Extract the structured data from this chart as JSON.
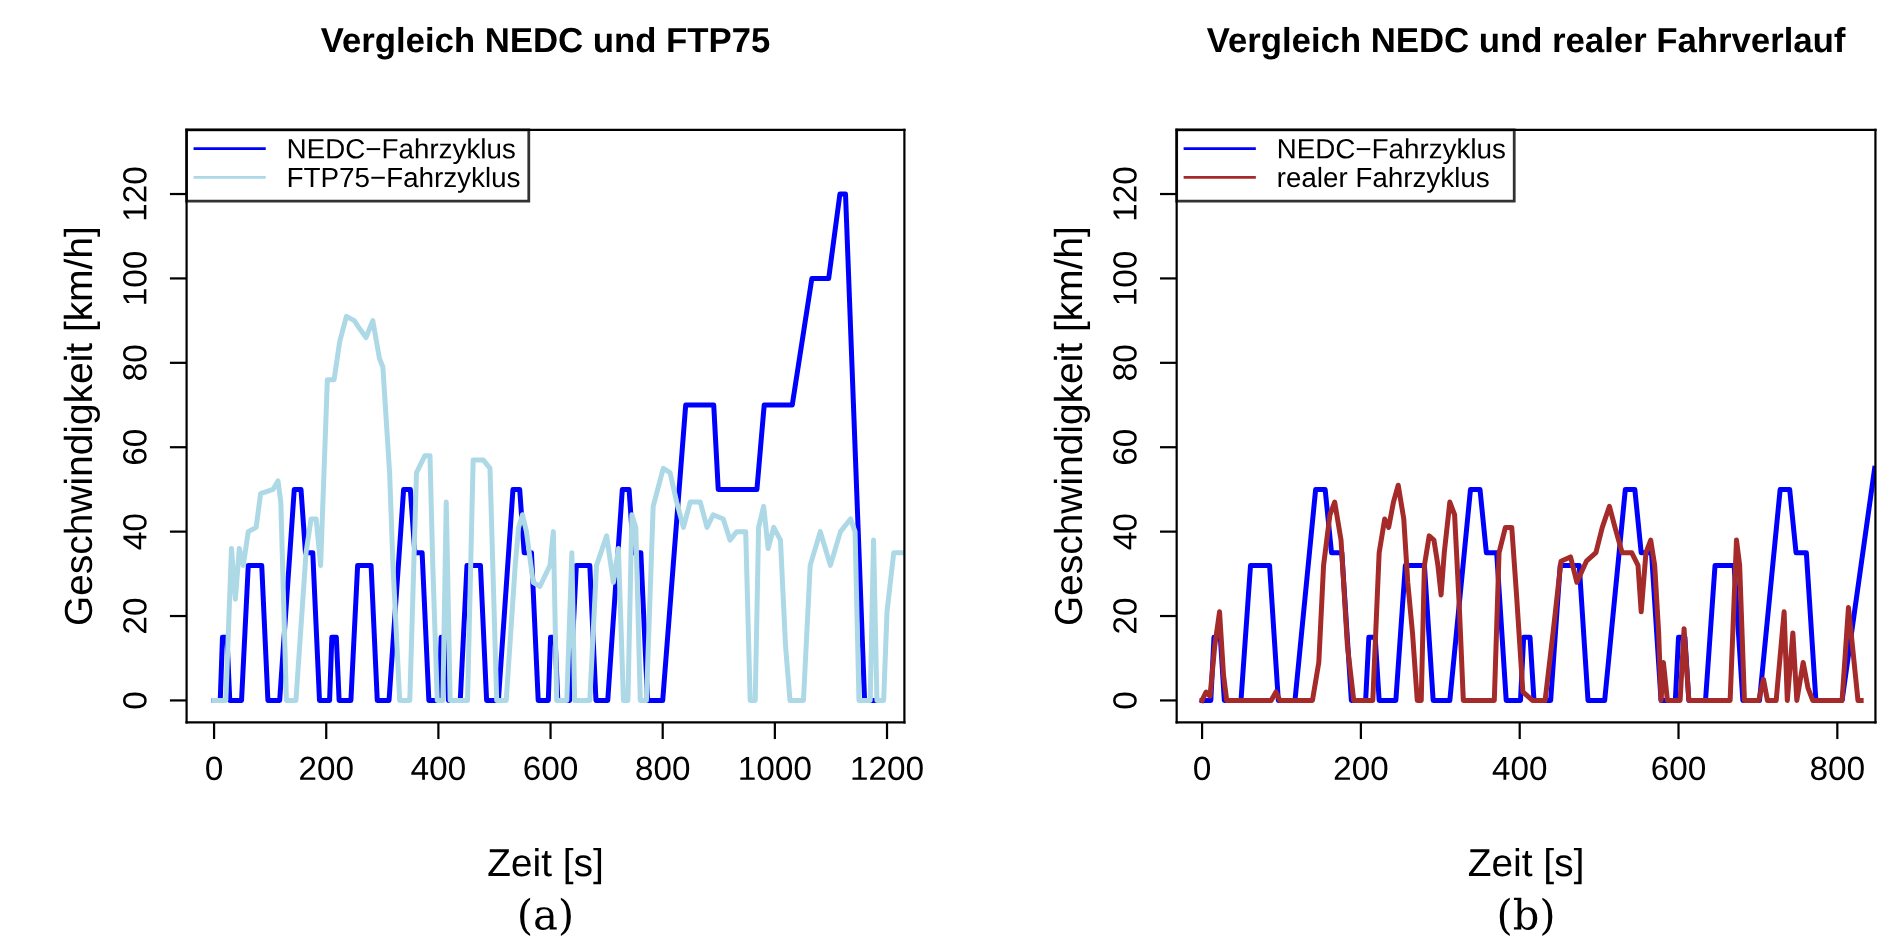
{
  "chart_data": [
    {
      "type": "line",
      "title": "Vergleich NEDC und FTP75",
      "xlabel": "Zeit [s]",
      "ylabel": "Geschwindigkeit [km/h]",
      "annotations": [
        "(a)"
      ],
      "legend": "top left",
      "xlim": [
        -49,
        1231
      ],
      "ylim": [
        -5.2,
        135.2
      ],
      "xticks": [
        0,
        200,
        400,
        600,
        800,
        1000,
        1200
      ],
      "yticks": [
        0,
        20,
        40,
        60,
        80,
        100,
        120
      ],
      "series": [
        {
          "name": "NEDC−Fahrzyklus",
          "color": "#0000ff",
          "x": [
            0,
            11,
            15,
            23,
            28,
            49,
            61,
            85,
            96,
            117,
            143,
            155,
            163,
            176,
            188,
            195,
            206,
            210,
            218,
            223,
            244,
            256,
            280,
            291,
            312,
            338,
            350,
            358,
            371,
            383,
            390,
            401,
            405,
            413,
            418,
            439,
            451,
            475,
            486,
            507,
            533,
            545,
            553,
            566,
            578,
            585,
            596,
            600,
            608,
            613,
            634,
            646,
            670,
            681,
            702,
            728,
            740,
            748,
            761,
            773,
            780,
            800,
            841,
            891,
            899,
            968,
            981,
            1031,
            1066,
            1096,
            1116,
            1126,
            1160,
            1180
          ],
          "values": [
            0,
            0,
            15,
            15,
            0,
            0,
            32,
            32,
            0,
            0,
            50,
            50,
            35,
            35,
            0,
            0,
            0,
            15,
            15,
            0,
            0,
            32,
            32,
            0,
            0,
            50,
            50,
            35,
            35,
            0,
            0,
            0,
            15,
            15,
            0,
            0,
            32,
            32,
            0,
            0,
            50,
            50,
            35,
            35,
            0,
            0,
            0,
            15,
            15,
            0,
            0,
            32,
            32,
            0,
            0,
            50,
            50,
            35,
            35,
            0,
            0,
            0,
            70,
            70,
            50,
            50,
            70,
            70,
            100,
            100,
            120,
            120,
            0,
            0
          ]
        },
        {
          "name": "FTP75−Fahrzyklus",
          "color": "#add8e6",
          "x": [
            0,
            21,
            31,
            38,
            45,
            52,
            61,
            75,
            83,
            105,
            114,
            119,
            129,
            146,
            164,
            173,
            182,
            190,
            202,
            214,
            224,
            236,
            250,
            260,
            271,
            283,
            295,
            301,
            313,
            319,
            331,
            349,
            361,
            376,
            385,
            390,
            398,
            408,
            414,
            421,
            452,
            462,
            480,
            492,
            504,
            521,
            537,
            543,
            550,
            557,
            569,
            581,
            599,
            605,
            611,
            629,
            638,
            643,
            670,
            682,
            700,
            712,
            721,
            730,
            738,
            745,
            752,
            760,
            771,
            783,
            801,
            813,
            825,
            837,
            849,
            867,
            879,
            890,
            908,
            920,
            932,
            948,
            956,
            965,
            971,
            980,
            988,
            998,
            1010,
            1019,
            1027,
            1051,
            1063,
            1081,
            1099,
            1117,
            1135,
            1143,
            1150,
            1170,
            1176,
            1182,
            1194,
            1200,
            1212,
            1230
          ],
          "values": [
            0,
            0,
            36,
            24,
            36,
            32,
            40,
            41,
            49,
            50,
            52,
            47,
            0,
            0,
            35,
            43,
            43,
            32,
            76,
            76,
            85,
            91,
            90,
            88,
            86,
            90,
            81,
            79,
            54,
            32,
            0,
            0,
            54,
            58,
            58,
            32,
            0,
            0,
            47,
            0,
            0,
            57,
            57,
            55,
            0,
            0,
            32,
            41,
            44,
            40,
            28,
            27,
            32,
            40,
            0,
            0,
            35,
            0,
            0,
            32,
            39,
            28,
            36,
            0,
            0,
            44,
            41,
            0,
            0,
            46,
            55,
            54,
            47,
            41,
            47,
            47,
            41,
            44,
            43,
            38,
            40,
            40,
            0,
            0,
            41,
            46,
            36,
            41,
            38,
            13,
            0,
            0,
            32,
            40,
            32,
            40,
            43,
            40,
            0,
            0,
            38,
            0,
            0,
            21,
            35,
            35
          ]
        }
      ]
    },
    {
      "type": "line",
      "title": "Vergleich NEDC und realer Fahrverlauf",
      "xlabel": "Zeit [s]",
      "ylabel": "Geschwindigkeit [km/h]",
      "annotations": [
        "(b)"
      ],
      "legend": "top left",
      "xlim": [
        -32,
        848
      ],
      "ylim": [
        -5.2,
        135.2
      ],
      "xticks": [
        0,
        200,
        400,
        600,
        800
      ],
      "yticks": [
        0,
        20,
        40,
        60,
        80,
        100,
        120
      ],
      "series": [
        {
          "name": "NEDC−Fahrzyklus",
          "color": "#0000ff",
          "x": [
            0,
            11,
            15,
            23,
            28,
            49,
            61,
            85,
            96,
            117,
            143,
            155,
            163,
            176,
            188,
            195,
            206,
            210,
            218,
            223,
            244,
            256,
            280,
            291,
            312,
            338,
            350,
            358,
            371,
            383,
            390,
            401,
            405,
            413,
            418,
            439,
            451,
            475,
            486,
            507,
            533,
            545,
            553,
            566,
            578,
            585,
            596,
            600,
            608,
            613,
            634,
            646,
            670,
            681,
            702,
            728,
            740,
            748,
            761,
            773,
            780,
            806,
            847
          ],
          "values": [
            0,
            0,
            15,
            15,
            0,
            0,
            32,
            32,
            0,
            0,
            50,
            50,
            35,
            35,
            0,
            0,
            0,
            15,
            15,
            0,
            0,
            32,
            32,
            0,
            0,
            50,
            50,
            35,
            35,
            0,
            0,
            0,
            15,
            15,
            0,
            0,
            32,
            32,
            0,
            0,
            50,
            50,
            35,
            35,
            0,
            0,
            0,
            15,
            15,
            0,
            0,
            32,
            32,
            0,
            0,
            50,
            50,
            35,
            35,
            0,
            0,
            0,
            55
          ]
        },
        {
          "name": "realer Fahrzyklus",
          "color": "#a52a2a",
          "x": [
            0,
            5,
            10,
            16,
            22,
            27,
            31,
            87,
            93,
            98,
            139,
            147,
            153,
            161,
            167,
            175,
            183,
            191,
            215,
            223,
            230,
            235,
            241,
            247,
            254,
            259,
            265,
            271,
            276,
            280,
            286,
            292,
            297,
            301,
            305,
            312,
            318,
            324,
            329,
            368,
            374,
            382,
            390,
            396,
            404,
            416,
            432,
            442,
            452,
            464,
            472,
            484,
            496,
            504,
            513,
            520,
            529,
            541,
            549,
            553,
            559,
            565,
            570,
            575,
            578,
            581,
            586,
            602,
            607,
            613,
            665,
            673,
            677,
            683,
            701,
            707,
            712,
            723,
            733,
            737,
            744,
            749,
            757,
            763,
            769,
            806,
            814,
            819,
            826,
            830
          ],
          "values": [
            0,
            2,
            1,
            13,
            21,
            6,
            0,
            0,
            2,
            0,
            0,
            9,
            32,
            44,
            47,
            38,
            13,
            0,
            0,
            35,
            43,
            41,
            47,
            51,
            43,
            28,
            16,
            0,
            0,
            32,
            39,
            38,
            32,
            25,
            35,
            47,
            44,
            22,
            0,
            0,
            35,
            41,
            41,
            25,
            2,
            0,
            0,
            16,
            33,
            34,
            28,
            33,
            35,
            41,
            46,
            41,
            35,
            35,
            32,
            21,
            35,
            38,
            32,
            16,
            0,
            9,
            0,
            0,
            17,
            0,
            0,
            38,
            32,
            0,
            0,
            5,
            0,
            0,
            21,
            0,
            16,
            0,
            9,
            3,
            0,
            0,
            22,
            13,
            0,
            0
          ]
        }
      ]
    }
  ]
}
